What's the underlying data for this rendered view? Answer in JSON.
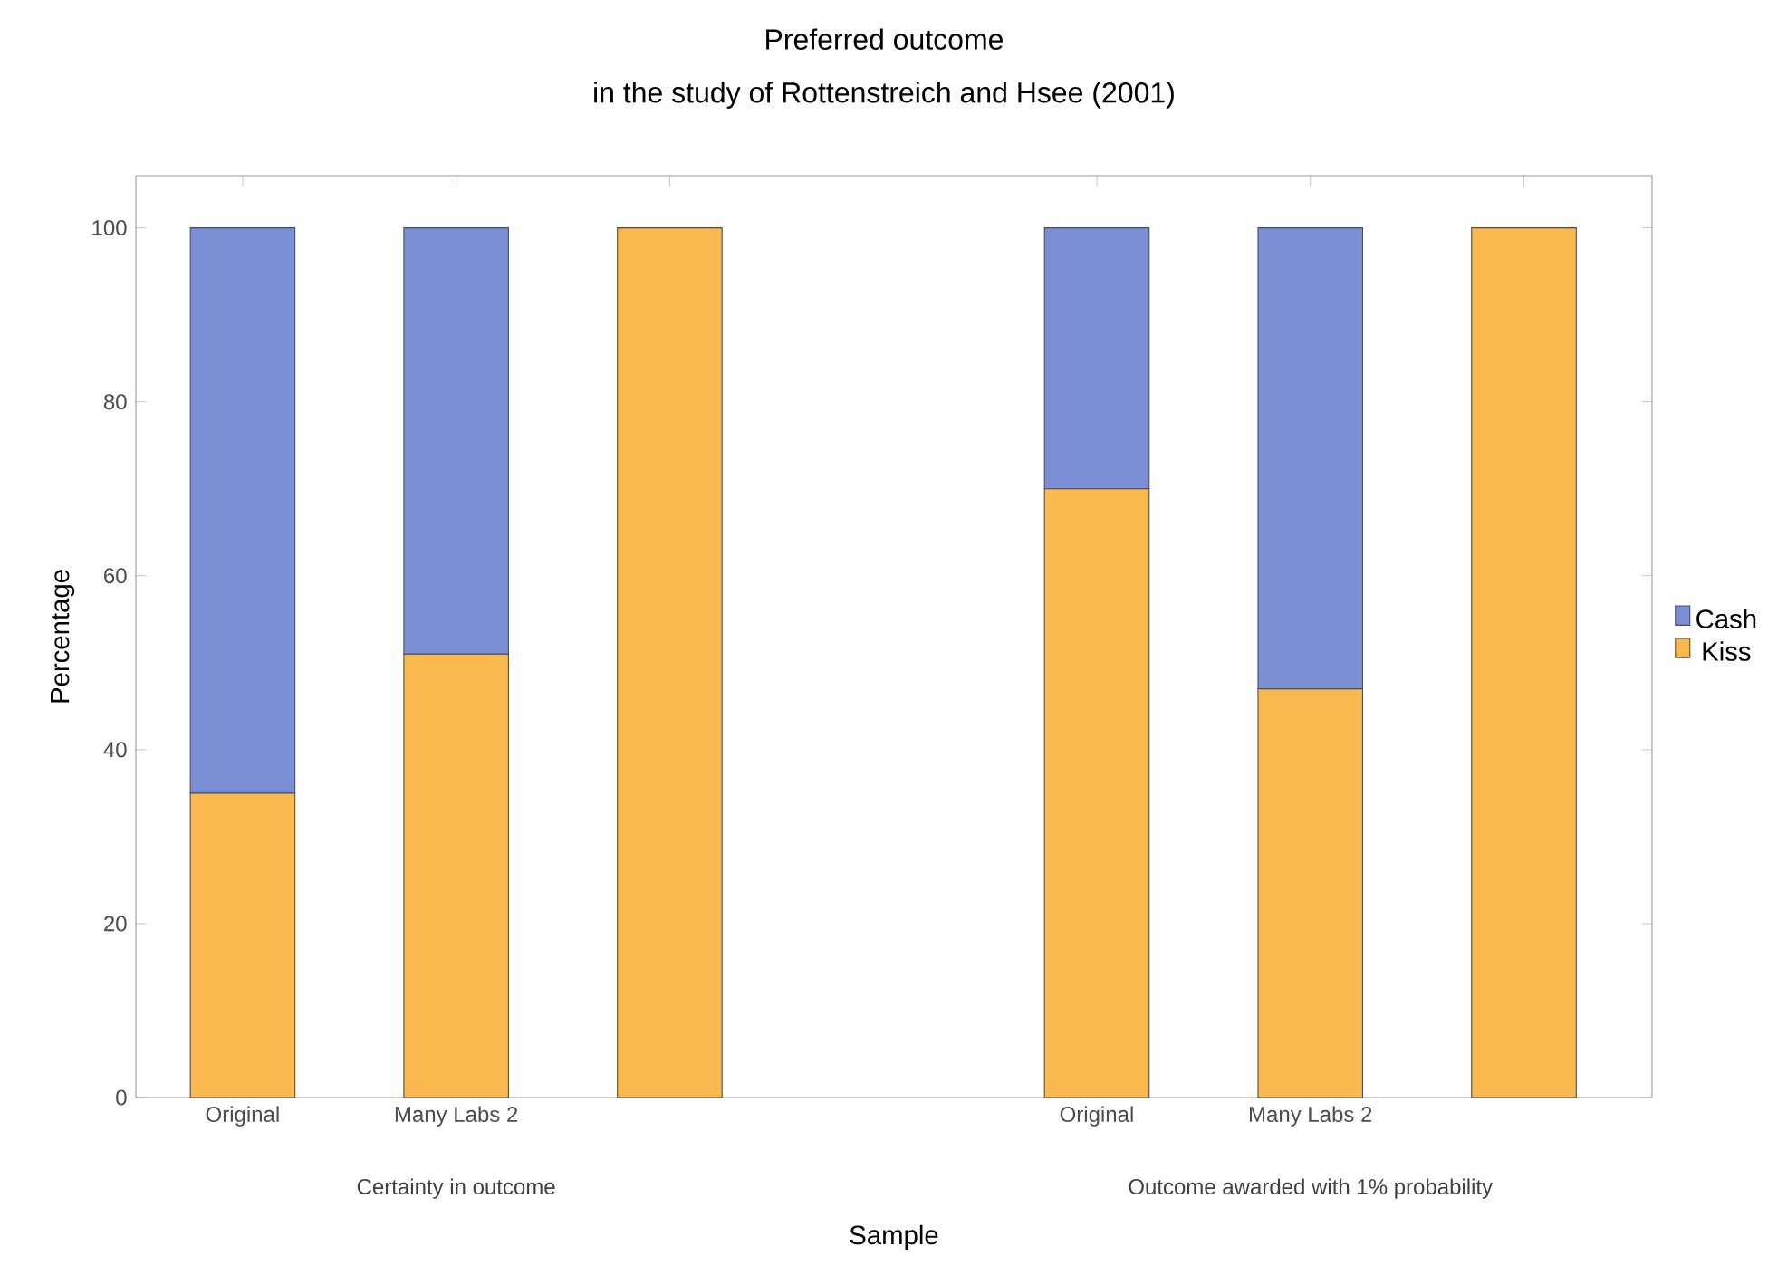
{
  "chart_data": {
    "type": "bar",
    "title": "Preferred outcome",
    "subtitle": "in the study of Rottenstreich and Hsee (2001)",
    "xlabel": "Sample",
    "ylabel": "Percentage",
    "categories": [
      "Original",
      "Many Labs 2",
      null,
      null,
      "Original",
      "Many Labs 2",
      null
    ],
    "stacked": true,
    "series": [
      {
        "name": "Kiss",
        "color": "#f9b94f",
        "values": [
          35,
          51,
          100,
          null,
          70,
          47,
          100
        ]
      },
      {
        "name": "Cash",
        "color": "#7b8fd6",
        "values": [
          65,
          49,
          0,
          null,
          30,
          53,
          0
        ]
      }
    ],
    "ylim": [
      0,
      106
    ],
    "yticks": [
      0,
      20,
      40,
      60,
      80,
      100
    ],
    "legend": "right",
    "annotations": [
      "Certainty in outcome",
      "Outcome awarded with 1% probability"
    ]
  }
}
